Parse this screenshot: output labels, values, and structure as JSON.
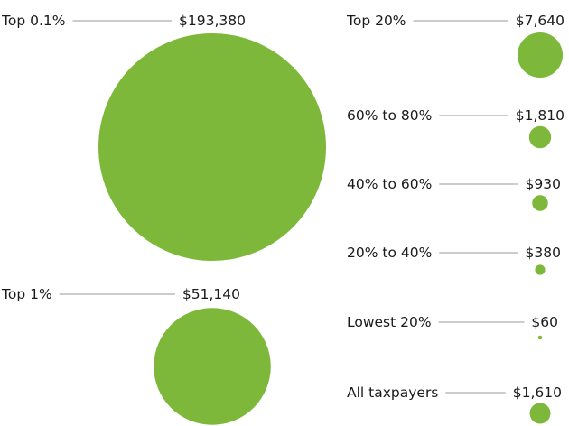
{
  "chart_data": {
    "type": "bubble",
    "value_format": "currency_usd",
    "color": "#7db83a",
    "leader_color": "#9a9a9a",
    "series": [
      {
        "label": "Top 0.1%",
        "value": 193380,
        "display": "$193,380"
      },
      {
        "label": "Top 1%",
        "value": 51140,
        "display": "$51,140"
      },
      {
        "label": "Top 20%",
        "value": 7640,
        "display": "$7,640"
      },
      {
        "label": "60% to 80%",
        "value": 1810,
        "display": "$1,810"
      },
      {
        "label": "40% to 60%",
        "value": 930,
        "display": "$930"
      },
      {
        "label": "20% to 40%",
        "value": 380,
        "display": "$380"
      },
      {
        "label": "Lowest 20%",
        "value": 60,
        "display": "$60"
      },
      {
        "label": "All taxpayers",
        "value": 1610,
        "display": "$1,610"
      }
    ]
  }
}
